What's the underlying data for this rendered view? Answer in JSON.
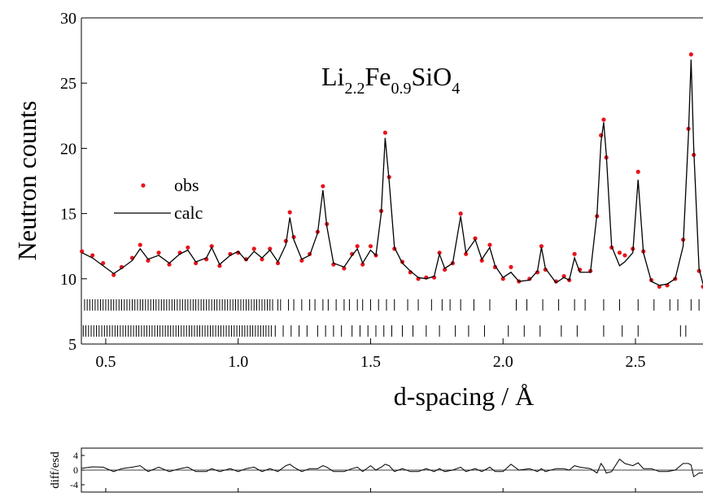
{
  "chart_data": [
    {
      "type": "line",
      "title_segments": [
        [
          "Li",
          "2.2"
        ],
        [
          "Fe",
          "0.9"
        ],
        [
          "SiO",
          "4"
        ]
      ],
      "xlabel": "d-spacing / Å",
      "ylabel": "Neutron counts",
      "xlim": [
        0.408,
        2.755
      ],
      "ylim": [
        5,
        30
      ],
      "xticks": [
        0.5,
        {
          "value": 1,
          "label": "1.0"
        },
        1.5,
        {
          "value": 2,
          "label": "2.0"
        },
        2.5
      ],
      "yticks": [
        5,
        10,
        15,
        20,
        25,
        30
      ],
      "legend": "left",
      "x": [
        0.41,
        0.45,
        0.49,
        0.53,
        0.56,
        0.6,
        0.63,
        0.66,
        0.7,
        0.74,
        0.78,
        0.81,
        0.84,
        0.88,
        0.9,
        0.93,
        0.97,
        1.0,
        1.03,
        1.06,
        1.09,
        1.12,
        1.15,
        1.18,
        1.195,
        1.21,
        1.24,
        1.27,
        1.3,
        1.32,
        1.335,
        1.36,
        1.4,
        1.43,
        1.45,
        1.47,
        1.5,
        1.52,
        1.54,
        1.555,
        1.57,
        1.59,
        1.62,
        1.65,
        1.68,
        1.71,
        1.74,
        1.76,
        1.78,
        1.81,
        1.84,
        1.86,
        1.895,
        1.92,
        1.95,
        1.97,
        2.0,
        2.03,
        2.06,
        2.1,
        2.13,
        2.145,
        2.16,
        2.2,
        2.23,
        2.25,
        2.27,
        2.29,
        2.33,
        2.355,
        2.37,
        2.38,
        2.39,
        2.41,
        2.44,
        2.46,
        2.49,
        2.51,
        2.53,
        2.56,
        2.59,
        2.62,
        2.65,
        2.68,
        2.7,
        2.71,
        2.72,
        2.74,
        2.755
      ],
      "series": [
        {
          "name": "obs",
          "color": "#e8141c",
          "style": "points",
          "values": [
            12.1,
            11.8,
            11.2,
            10.3,
            10.9,
            11.6,
            12.6,
            11.4,
            12.0,
            11.1,
            12.0,
            12.4,
            11.2,
            11.5,
            12.5,
            11.0,
            11.9,
            12.0,
            11.5,
            12.3,
            11.5,
            12.3,
            11.2,
            12.9,
            15.1,
            13.2,
            11.4,
            11.9,
            13.6,
            17.1,
            14.2,
            11.1,
            10.8,
            11.9,
            12.5,
            11.1,
            12.5,
            11.8,
            15.2,
            21.2,
            17.8,
            12.3,
            11.3,
            10.5,
            10.0,
            10.1,
            10.1,
            12.0,
            10.7,
            11.2,
            15.0,
            11.9,
            13.1,
            11.4,
            12.6,
            10.9,
            10.0,
            10.9,
            9.8,
            10.0,
            10.5,
            12.5,
            10.7,
            9.8,
            10.2,
            9.9,
            11.9,
            10.7,
            10.6,
            14.8,
            21.0,
            22.2,
            19.3,
            12.4,
            12.0,
            11.8,
            12.3,
            18.2,
            12.1,
            9.9,
            9.4,
            9.5,
            10.0,
            13.0,
            21.5,
            27.2,
            19.5,
            10.6,
            9.4
          ]
        },
        {
          "name": "calc",
          "color": "#000000",
          "style": "line",
          "values": [
            12.0,
            11.6,
            11.0,
            10.4,
            10.8,
            11.4,
            12.3,
            11.5,
            11.8,
            11.2,
            11.9,
            12.2,
            11.3,
            11.6,
            12.4,
            11.1,
            11.8,
            12.1,
            11.4,
            12.1,
            11.6,
            12.2,
            11.3,
            12.6,
            14.7,
            13.0,
            11.5,
            11.8,
            13.5,
            16.8,
            14.0,
            11.2,
            10.9,
            11.8,
            12.3,
            11.2,
            12.2,
            11.8,
            15.0,
            20.8,
            17.5,
            12.4,
            11.2,
            10.6,
            10.1,
            10.0,
            10.2,
            11.9,
            10.8,
            11.2,
            14.8,
            12.0,
            13.0,
            11.5,
            12.4,
            11.0,
            10.1,
            10.5,
            9.8,
            9.9,
            10.6,
            12.4,
            10.8,
            9.7,
            10.1,
            9.9,
            11.6,
            10.5,
            10.5,
            15.0,
            20.5,
            22.0,
            19.5,
            12.5,
            11.0,
            11.3,
            12.0,
            17.6,
            12.0,
            9.8,
            9.5,
            9.6,
            10.0,
            12.5,
            21.0,
            26.8,
            20.0,
            10.8,
            9.6
          ]
        }
      ],
      "reflections": [
        {
          "y": 8,
          "color": "#000000",
          "positions": [
            0.42,
            0.43,
            0.44,
            0.45,
            0.46,
            0.47,
            0.48,
            0.49,
            0.5,
            0.51,
            0.52,
            0.53,
            0.54,
            0.55,
            0.56,
            0.57,
            0.58,
            0.59,
            0.6,
            0.61,
            0.62,
            0.63,
            0.64,
            0.65,
            0.66,
            0.67,
            0.68,
            0.69,
            0.7,
            0.71,
            0.72,
            0.73,
            0.74,
            0.75,
            0.76,
            0.77,
            0.78,
            0.79,
            0.8,
            0.81,
            0.82,
            0.83,
            0.84,
            0.85,
            0.86,
            0.87,
            0.88,
            0.89,
            0.9,
            0.91,
            0.92,
            0.93,
            0.94,
            0.95,
            0.96,
            0.97,
            0.98,
            0.99,
            1.0,
            1.01,
            1.02,
            1.03,
            1.04,
            1.05,
            1.06,
            1.07,
            1.08,
            1.09,
            1.1,
            1.11,
            1.12,
            1.13,
            1.15,
            1.16,
            1.19,
            1.21,
            1.24,
            1.27,
            1.29,
            1.32,
            1.34,
            1.37,
            1.4,
            1.42,
            1.45,
            1.47,
            1.5,
            1.53,
            1.56,
            1.59,
            1.64,
            1.68,
            1.73,
            1.77,
            1.8,
            1.84,
            1.89,
            1.95,
            2.05,
            2.09,
            2.15,
            2.21,
            2.27,
            2.31,
            2.38,
            2.44,
            2.51,
            2.57,
            2.63,
            2.66,
            2.71,
            2.74
          ]
        },
        {
          "y": 6,
          "color": "#000000",
          "positions": [
            0.415,
            0.425,
            0.435,
            0.445,
            0.455,
            0.465,
            0.475,
            0.485,
            0.495,
            0.505,
            0.515,
            0.525,
            0.535,
            0.545,
            0.555,
            0.565,
            0.575,
            0.585,
            0.595,
            0.605,
            0.615,
            0.625,
            0.635,
            0.645,
            0.655,
            0.665,
            0.675,
            0.685,
            0.695,
            0.705,
            0.715,
            0.725,
            0.735,
            0.745,
            0.755,
            0.765,
            0.775,
            0.785,
            0.795,
            0.805,
            0.815,
            0.825,
            0.835,
            0.845,
            0.855,
            0.865,
            0.875,
            0.885,
            0.895,
            0.905,
            0.915,
            0.925,
            0.935,
            0.945,
            0.955,
            0.965,
            0.975,
            0.985,
            0.995,
            1.005,
            1.015,
            1.025,
            1.035,
            1.045,
            1.055,
            1.065,
            1.075,
            1.085,
            1.095,
            1.105,
            1.115,
            1.125,
            1.14,
            1.17,
            1.2,
            1.23,
            1.26,
            1.3,
            1.33,
            1.36,
            1.39,
            1.43,
            1.46,
            1.49,
            1.52,
            1.55,
            1.58,
            1.62,
            1.66,
            1.71,
            1.76,
            1.82,
            1.87,
            1.93,
            2.02,
            2.08,
            2.14,
            2.22,
            2.28,
            2.38,
            2.45,
            2.51,
            2.67,
            2.69
          ]
        }
      ]
    },
    {
      "type": "line",
      "ylabel": "diff/esd",
      "xlim": [
        0.408,
        2.755
      ],
      "ylim": [
        -6,
        6
      ],
      "yticks": [
        -4,
        0,
        4
      ],
      "color": "#000000",
      "values": [
        0.5,
        0.9,
        0.8,
        -0.4,
        0.4,
        0.8,
        1.2,
        -0.4,
        0.8,
        -0.4,
        0.4,
        0.8,
        -0.4,
        -0.4,
        0.4,
        -0.4,
        0.4,
        -0.4,
        0.4,
        0.8,
        -0.4,
        0.4,
        -0.4,
        1.2,
        1.6,
        0.8,
        -0.4,
        0.4,
        0.4,
        1.2,
        0.8,
        -0.4,
        -0.4,
        0.4,
        0.8,
        -0.4,
        1.2,
        0,
        0.8,
        1.6,
        1.2,
        -0.4,
        0.4,
        -0.4,
        -0.4,
        0.4,
        -0.4,
        0.4,
        -0.4,
        0,
        0.8,
        -0.4,
        0.4,
        -0.4,
        0.8,
        -0.4,
        -0.4,
        1.6,
        0,
        0.4,
        -0.4,
        0.4,
        -0.4,
        0.4,
        0.4,
        0,
        1.2,
        0.8,
        0.4,
        -0.8,
        1.8,
        0.8,
        -0.8,
        -0.4,
        3.0,
        1.8,
        1.2,
        2.0,
        0.4,
        0.4,
        -0.4,
        -0.4,
        0,
        1.8,
        1.8,
        1.4,
        -1.8,
        -0.8,
        -0.8
      ]
    }
  ]
}
